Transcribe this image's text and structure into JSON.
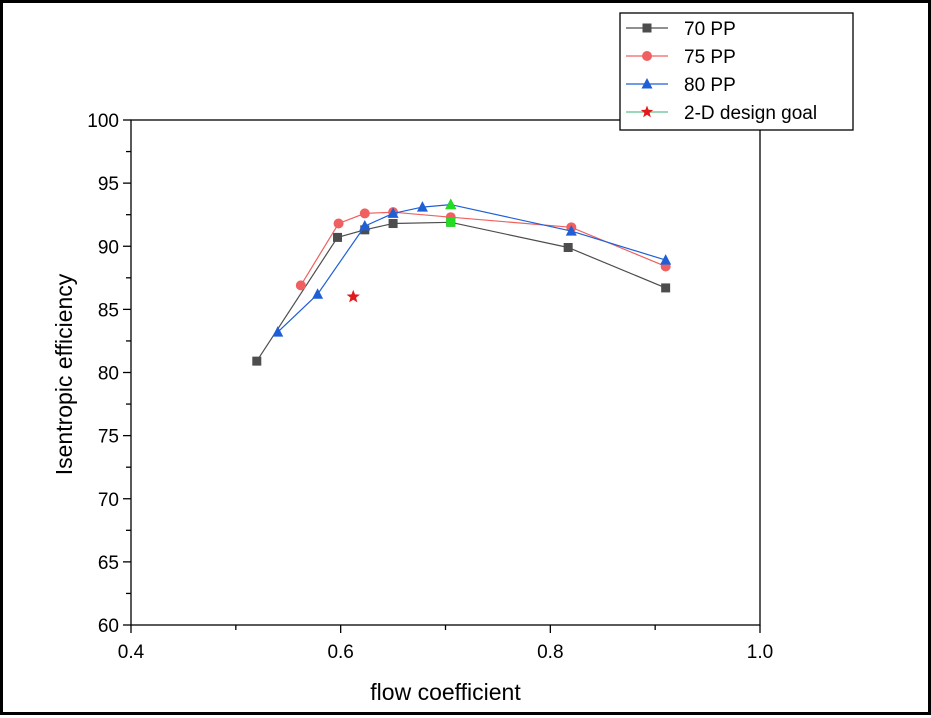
{
  "chart_data": {
    "type": "scatter",
    "title": "",
    "xlabel": "flow coefficient",
    "ylabel": "Isentropic efficiency",
    "xlim": [
      0.4,
      1.0
    ],
    "ylim": [
      60,
      100
    ],
    "xticks": [
      0.4,
      0.6,
      0.8,
      1.0
    ],
    "xtick_labels": [
      "0.4",
      "0.6",
      "0.8",
      "1.0"
    ],
    "yticks": [
      60,
      65,
      70,
      75,
      80,
      85,
      90,
      95,
      100
    ],
    "ytick_labels": [
      "60",
      "65",
      "70",
      "75",
      "80",
      "85",
      "90",
      "95",
      "100"
    ],
    "grid": false,
    "legend_position": "top-right",
    "series": [
      {
        "name": "70 PP",
        "color": "#4d4d4d",
        "marker": "square",
        "line": true,
        "x": [
          0.52,
          0.597,
          0.623,
          0.65,
          0.705,
          0.817,
          0.91
        ],
        "y": [
          80.9,
          90.7,
          91.3,
          91.8,
          91.9,
          89.9,
          86.7
        ]
      },
      {
        "name": "75 PP",
        "color": "#f06060",
        "marker": "circle",
        "line": true,
        "x": [
          0.562,
          0.598,
          0.623,
          0.65,
          0.705,
          0.82,
          0.91
        ],
        "y": [
          86.9,
          91.8,
          92.6,
          92.7,
          92.3,
          91.5,
          88.4
        ]
      },
      {
        "name": "80 PP",
        "color": "#1f5fd6",
        "marker": "triangle",
        "line": true,
        "x": [
          0.54,
          0.578,
          0.623,
          0.65,
          0.678,
          0.705,
          0.82,
          0.91
        ],
        "y": [
          83.2,
          86.2,
          91.6,
          92.6,
          93.1,
          93.3,
          91.2,
          88.9
        ]
      },
      {
        "name": "2-D design goal",
        "color": "#e31a1c",
        "line_color": "#5fbf8f",
        "marker": "star",
        "line": false,
        "x": [
          0.612
        ],
        "y": [
          86.0
        ]
      }
    ],
    "highlight_points": [
      {
        "series": "80 PP",
        "x": 0.705,
        "y": 93.3,
        "color": "#22dd22",
        "marker": "triangle"
      },
      {
        "series": "70 PP",
        "x": 0.705,
        "y": 91.9,
        "color": "#22dd22",
        "marker": "square"
      }
    ]
  }
}
